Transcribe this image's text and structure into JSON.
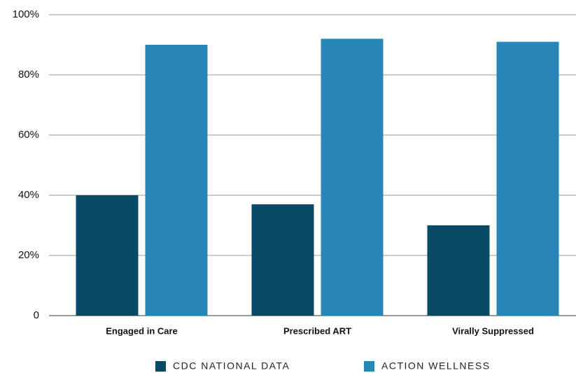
{
  "chart_data": {
    "type": "bar",
    "categories": [
      "Engaged in Care",
      "Prescribed ART",
      "Virally Suppressed"
    ],
    "series": [
      {
        "name": "CDC NATIONAL DATA",
        "color": "#084a66",
        "values": [
          40,
          37,
          30
        ]
      },
      {
        "name": "ACTION WELLNESS",
        "color": "#2887b8",
        "values": [
          90,
          92,
          91
        ]
      }
    ],
    "ylim": [
      0,
      100
    ],
    "yticks": [
      0,
      {
        "value": 20,
        "label": "20%"
      },
      {
        "value": 40,
        "label": "40%"
      },
      {
        "value": 60,
        "label": "60%"
      },
      {
        "value": 80,
        "label": "80%"
      },
      {
        "value": 100,
        "label": "100%"
      }
    ],
    "grid": true,
    "legend": "bottom"
  }
}
